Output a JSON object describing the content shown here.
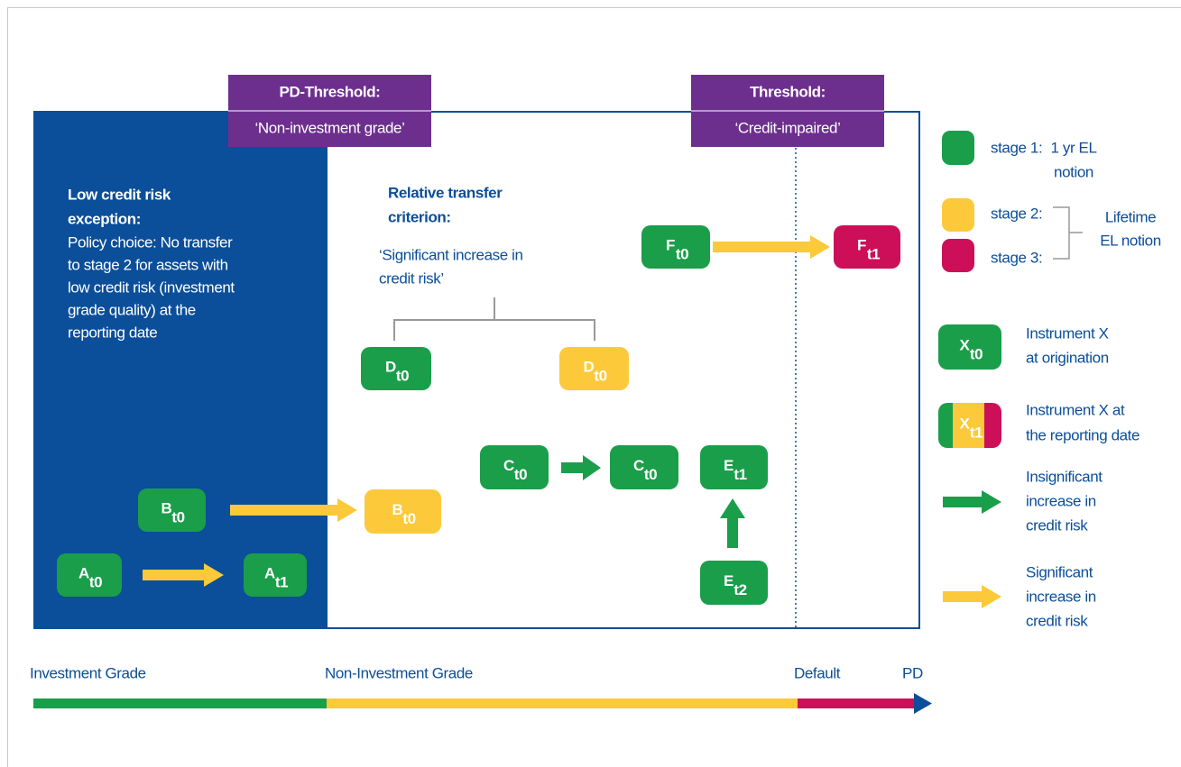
{
  "thresholds": [
    {
      "title": "PD-Threshold:",
      "subtitle": "‘Non-investment grade’"
    },
    {
      "title": "Threshold:",
      "subtitle": "‘Credit-impaired’"
    }
  ],
  "low_credit_risk": {
    "title": [
      "Low credit risk",
      "exception:"
    ],
    "text": [
      "Policy choice: No transfer",
      "to stage 2 for assets with",
      "low credit risk (investment",
      "grade quality) at the",
      "reporting date"
    ]
  },
  "relative_transfer": {
    "title": [
      "Relative transfer",
      "criterion:"
    ],
    "text": [
      "‘Significant increase in",
      "credit risk’"
    ]
  },
  "nodes": [
    {
      "letter": "A",
      "sub": "t0"
    },
    {
      "letter": "A",
      "sub": "t1"
    },
    {
      "letter": "B",
      "sub": "t0"
    },
    {
      "letter": "B",
      "sub": "t0"
    },
    {
      "letter": "C",
      "sub": "t0"
    },
    {
      "letter": "C",
      "sub": "t0"
    },
    {
      "letter": "D",
      "sub": "t0"
    },
    {
      "letter": "D",
      "sub": "t0"
    },
    {
      "letter": "E",
      "sub": "t1"
    },
    {
      "letter": "E",
      "sub": "t2"
    },
    {
      "letter": "F",
      "sub": "t0"
    },
    {
      "letter": "F",
      "sub": "t1"
    }
  ],
  "legend": {
    "stage1": {
      "label": "stage 1:",
      "notion": [
        "1 yr EL",
        "notion"
      ]
    },
    "stage2": {
      "label": "stage 2:"
    },
    "stage3": {
      "label": "stage 3:"
    },
    "lifetime": [
      "Lifetime",
      "EL notion"
    ],
    "origination": {
      "letter": "X",
      "sub": "t0",
      "text": [
        "Instrument X",
        "at origination"
      ]
    },
    "reporting": {
      "letter": "X",
      "sub": "t1",
      "text": [
        "Instrument X at",
        "the reporting date"
      ]
    },
    "insignificant": [
      "Insignificant",
      "increase in",
      "credit risk"
    ],
    "significant": [
      "Significant",
      "increase in",
      "credit risk"
    ]
  },
  "axis": {
    "labels": [
      "Investment Grade",
      "Non-Investment Grade",
      "Default",
      "PD"
    ]
  }
}
